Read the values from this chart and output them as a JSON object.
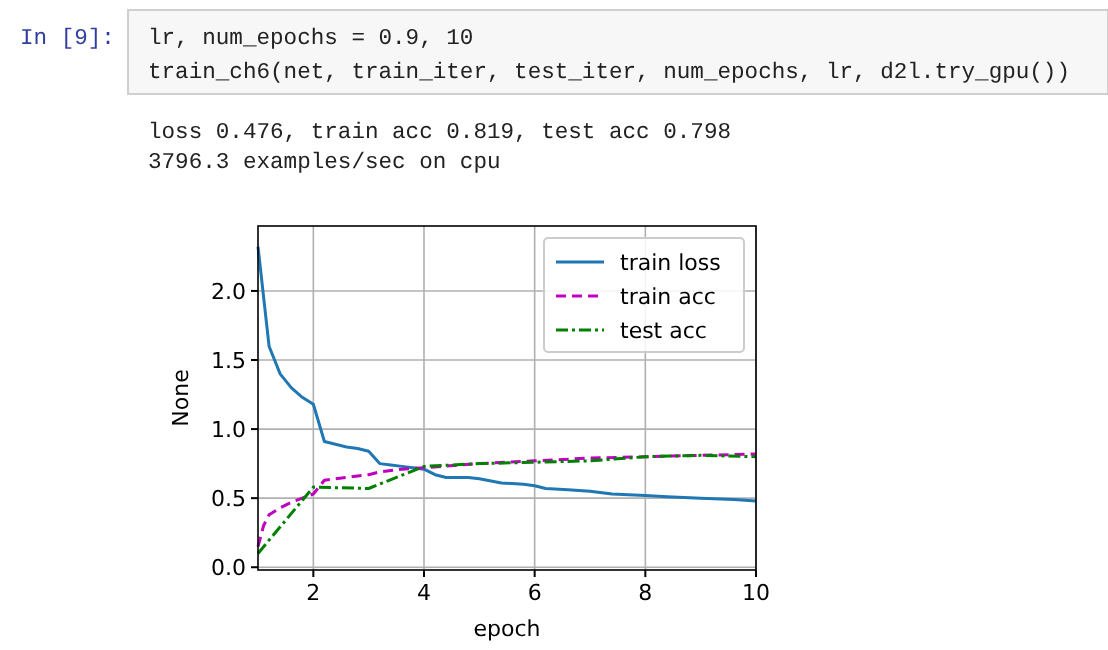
{
  "chart_data": {
    "type": "line",
    "xlabel": "epoch",
    "ylabel": "None",
    "xlim": [
      1,
      10
    ],
    "xticks": [
      2,
      4,
      6,
      8,
      10
    ],
    "ylim": [
      -0.02,
      2.47
    ],
    "yticks": [
      {
        "value": 0,
        "label": "0.0"
      },
      {
        "value": 0.5,
        "label": "0.5"
      },
      {
        "value": 1,
        "label": "1.0"
      },
      {
        "value": 1.5,
        "label": "1.5"
      },
      {
        "value": 2,
        "label": "2.0"
      }
    ],
    "grid": true,
    "legend": "top right",
    "series": [
      {
        "name": "train loss",
        "color": "#1f77b4",
        "line_style": "solid",
        "x": [
          1,
          1.2,
          1.4,
          1.6,
          1.8,
          2,
          2.2,
          2.4,
          2.6,
          2.8,
          3,
          3.2,
          3.4,
          3.6,
          3.8,
          4,
          4.2,
          4.4,
          4.6,
          4.8,
          5,
          5.4,
          5.8,
          6,
          6.2,
          6.6,
          7,
          7.4,
          8,
          8.4,
          9,
          9.6,
          10
        ],
        "values": [
          2.32,
          1.6,
          1.4,
          1.3,
          1.23,
          1.18,
          0.91,
          0.89,
          0.87,
          0.86,
          0.84,
          0.75,
          0.74,
          0.73,
          0.72,
          0.71,
          0.67,
          0.65,
          0.65,
          0.65,
          0.64,
          0.61,
          0.6,
          0.59,
          0.57,
          0.56,
          0.55,
          0.53,
          0.52,
          0.51,
          0.5,
          0.49,
          0.48
        ]
      },
      {
        "name": "train acc",
        "color": "#bf00bf",
        "line_style": "dashed",
        "x": [
          1,
          1.1,
          1.2,
          1.4,
          1.6,
          1.8,
          2,
          2.2,
          2.6,
          3,
          3.2,
          3.6,
          4,
          5,
          6,
          7,
          8,
          9,
          10
        ],
        "values": [
          0.15,
          0.3,
          0.38,
          0.43,
          0.47,
          0.5,
          0.53,
          0.63,
          0.65,
          0.67,
          0.69,
          0.71,
          0.72,
          0.75,
          0.77,
          0.79,
          0.8,
          0.81,
          0.82
        ]
      },
      {
        "name": "test acc",
        "color": "#008000",
        "line_style": "dashdot",
        "x": [
          1,
          2,
          3,
          4,
          5,
          6,
          7,
          8,
          9,
          10
        ],
        "values": [
          0.1,
          0.58,
          0.57,
          0.73,
          0.75,
          0.76,
          0.77,
          0.8,
          0.81,
          0.8
        ]
      }
    ],
    "annotations": [
      "In [9]:",
      "lr, num_epochs = 0.9, 10",
      "train_ch6(net, train_iter, test_iter, num_epochs, lr, d2l.try_gpu())",
      "loss 0.476, train acc 0.819, test acc 0.798",
      "3796.3 examples/sec on cpu"
    ]
  }
}
